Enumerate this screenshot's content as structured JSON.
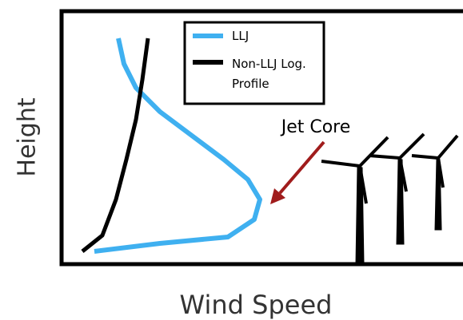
{
  "axes": {
    "x_label": "Wind Speed",
    "y_label": "Height"
  },
  "legend": {
    "items": [
      {
        "label": "LLJ"
      },
      {
        "label": "Non-LLJ Log. Profile"
      }
    ]
  },
  "annotation": "Jet Core"
}
